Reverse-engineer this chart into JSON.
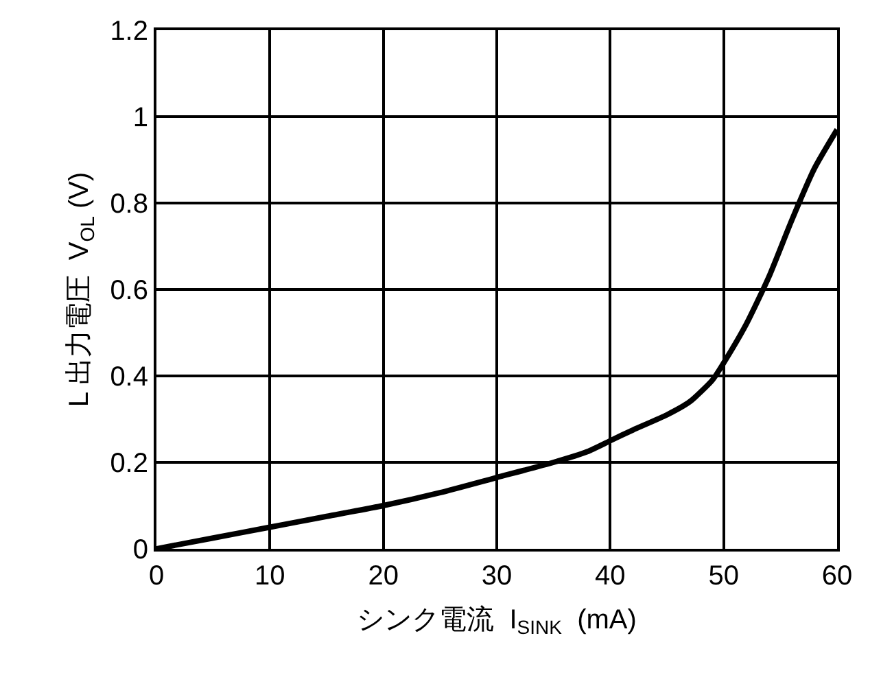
{
  "chart_data": {
    "type": "line",
    "xlabel": "シンク電流  I$_{SINK}$  (mA)",
    "ylabel": "L 出力電圧  V$_{OL}$ (V)",
    "x": [
      0,
      5,
      10,
      15,
      20,
      25,
      30,
      35,
      38,
      40,
      42,
      45,
      47,
      49,
      50,
      52,
      54,
      56,
      58,
      60
    ],
    "series": [
      {
        "color": "#000000",
        "values": [
          0,
          0.025,
          0.05,
          0.075,
          0.1,
          0.13,
          0.165,
          0.2,
          0.225,
          0.25,
          0.275,
          0.31,
          0.34,
          0.39,
          0.43,
          0.52,
          0.63,
          0.76,
          0.88,
          0.97
        ]
      }
    ],
    "xlim": [
      0,
      60
    ],
    "xticks": [
      0,
      10,
      20,
      30,
      40,
      50,
      60
    ],
    "ylim": [
      0,
      1.2
    ],
    "yticks": [
      0,
      0.2,
      0.4,
      0.6,
      0.8,
      1,
      1.2
    ],
    "grid": true,
    "line_style": "solid"
  }
}
